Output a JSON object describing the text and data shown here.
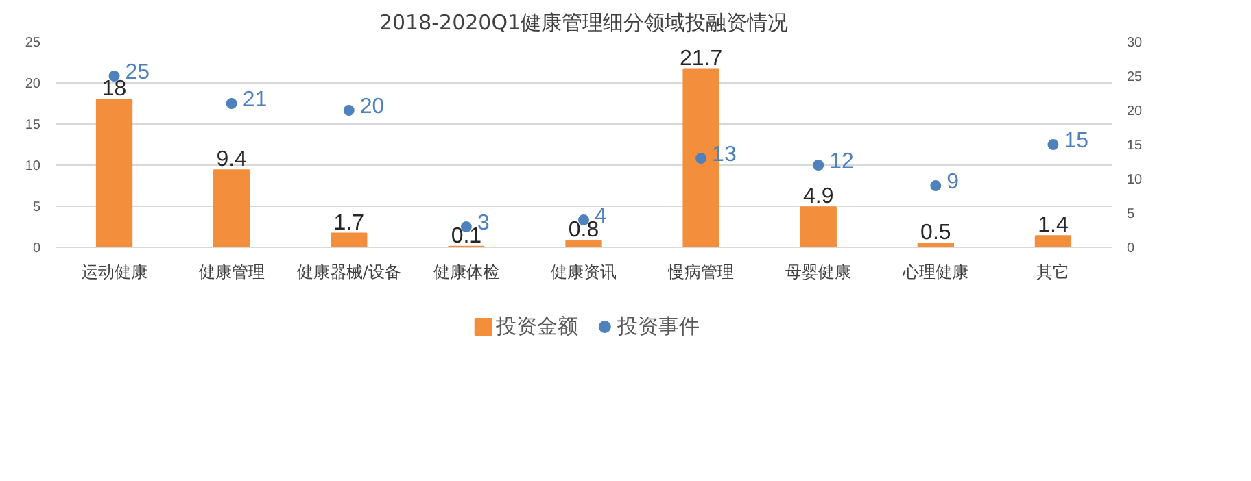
{
  "chart_data": {
    "type": "bar",
    "title": "2018-2020Q1健康管理细分领域投融资情况",
    "categories": [
      "运动健康",
      "健康管理",
      "健康器械/设备",
      "健康体检",
      "健康资讯",
      "慢病管理",
      "母婴健康",
      "心理健康",
      "其它"
    ],
    "series": [
      {
        "name": "投资金额",
        "color": "#f28e3c",
        "values": [
          18,
          9.4,
          1.7,
          0.1,
          0.8,
          21.7,
          4.9,
          0.5,
          1.4
        ]
      },
      {
        "name": "投资事件",
        "type": "scatter",
        "axis": "y2",
        "color": "#4f81bd",
        "values": [
          25,
          21,
          20,
          3,
          4,
          13,
          12,
          9,
          15
        ]
      }
    ],
    "ylim": [
      0,
      25
    ],
    "yticks": [
      0,
      5,
      10,
      15,
      20,
      25
    ],
    "y2lim": [
      0,
      30
    ],
    "y2ticks": [
      0,
      5,
      10,
      15,
      20,
      25,
      30
    ],
    "grid": "y",
    "legend": "bottom",
    "marker": "circle",
    "data_labels": true
  }
}
